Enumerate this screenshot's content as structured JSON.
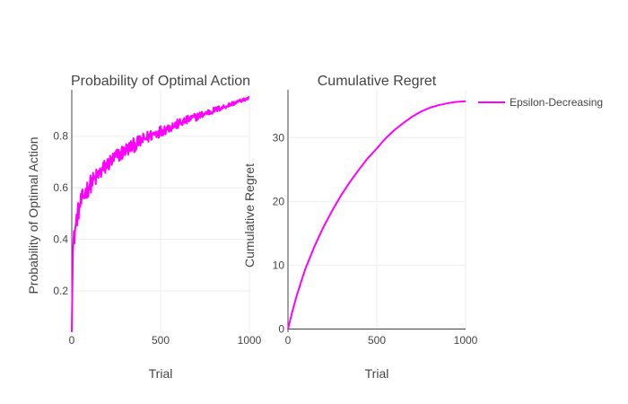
{
  "chart_data": [
    {
      "type": "line",
      "title": "Probability of Optimal Action",
      "xlabel": "Trial",
      "ylabel": "Probability of Optimal Action",
      "xlim": [
        0,
        1000
      ],
      "ylim": [
        0.04,
        0.98
      ],
      "xticks": [
        0,
        500,
        1000
      ],
      "xtick_labels": [
        "0",
        "500",
        "1000"
      ],
      "yticks": [
        0.2,
        0.4,
        0.6,
        0.8
      ],
      "ytick_labels": [
        "0.2",
        "0.4",
        "0.6",
        "0.8"
      ],
      "grid": true,
      "series": [
        {
          "name": "Epsilon-Decreasing",
          "color": "#ff00ff",
          "style": "noisy",
          "x": [
            0,
            5,
            10,
            20,
            30,
            50,
            75,
            100,
            150,
            200,
            250,
            300,
            350,
            400,
            450,
            500,
            550,
            600,
            650,
            700,
            750,
            800,
            850,
            900,
            950,
            1000
          ],
          "y": [
            0.08,
            0.33,
            0.39,
            0.44,
            0.49,
            0.54,
            0.58,
            0.61,
            0.65,
            0.69,
            0.72,
            0.745,
            0.765,
            0.785,
            0.805,
            0.82,
            0.835,
            0.848,
            0.862,
            0.875,
            0.888,
            0.9,
            0.912,
            0.925,
            0.937,
            0.948
          ]
        }
      ]
    },
    {
      "type": "line",
      "title": "Cumulative Regret",
      "xlabel": "Trial",
      "ylabel": "Cumulative Regret",
      "xlim": [
        0,
        1000
      ],
      "ylim": [
        -0.5,
        37.5
      ],
      "xticks": [
        0,
        500,
        1000
      ],
      "xtick_labels": [
        "0",
        "500",
        "1000"
      ],
      "yticks": [
        0,
        10,
        20,
        30
      ],
      "ytick_labels": [
        "0",
        "10",
        "20",
        "30"
      ],
      "grid": true,
      "zeroline": true,
      "series": [
        {
          "name": "Epsilon-Decreasing",
          "color": "#ff00ff",
          "style": "smooth",
          "x": [
            0,
            25,
            50,
            75,
            100,
            150,
            200,
            250,
            300,
            350,
            400,
            450,
            500,
            550,
            600,
            650,
            700,
            750,
            800,
            850,
            900,
            950,
            1000
          ],
          "y": [
            0,
            2.8,
            5.3,
            7.5,
            9.6,
            13.0,
            16.0,
            18.6,
            21.0,
            23.1,
            25.0,
            26.8,
            28.3,
            29.9,
            31.2,
            32.3,
            33.3,
            34.1,
            34.7,
            35.1,
            35.4,
            35.6,
            35.7
          ]
        }
      ]
    }
  ],
  "legend": {
    "position": "top-right",
    "items": [
      {
        "label": "Epsilon-Decreasing",
        "color": "#ff00ff"
      }
    ]
  }
}
